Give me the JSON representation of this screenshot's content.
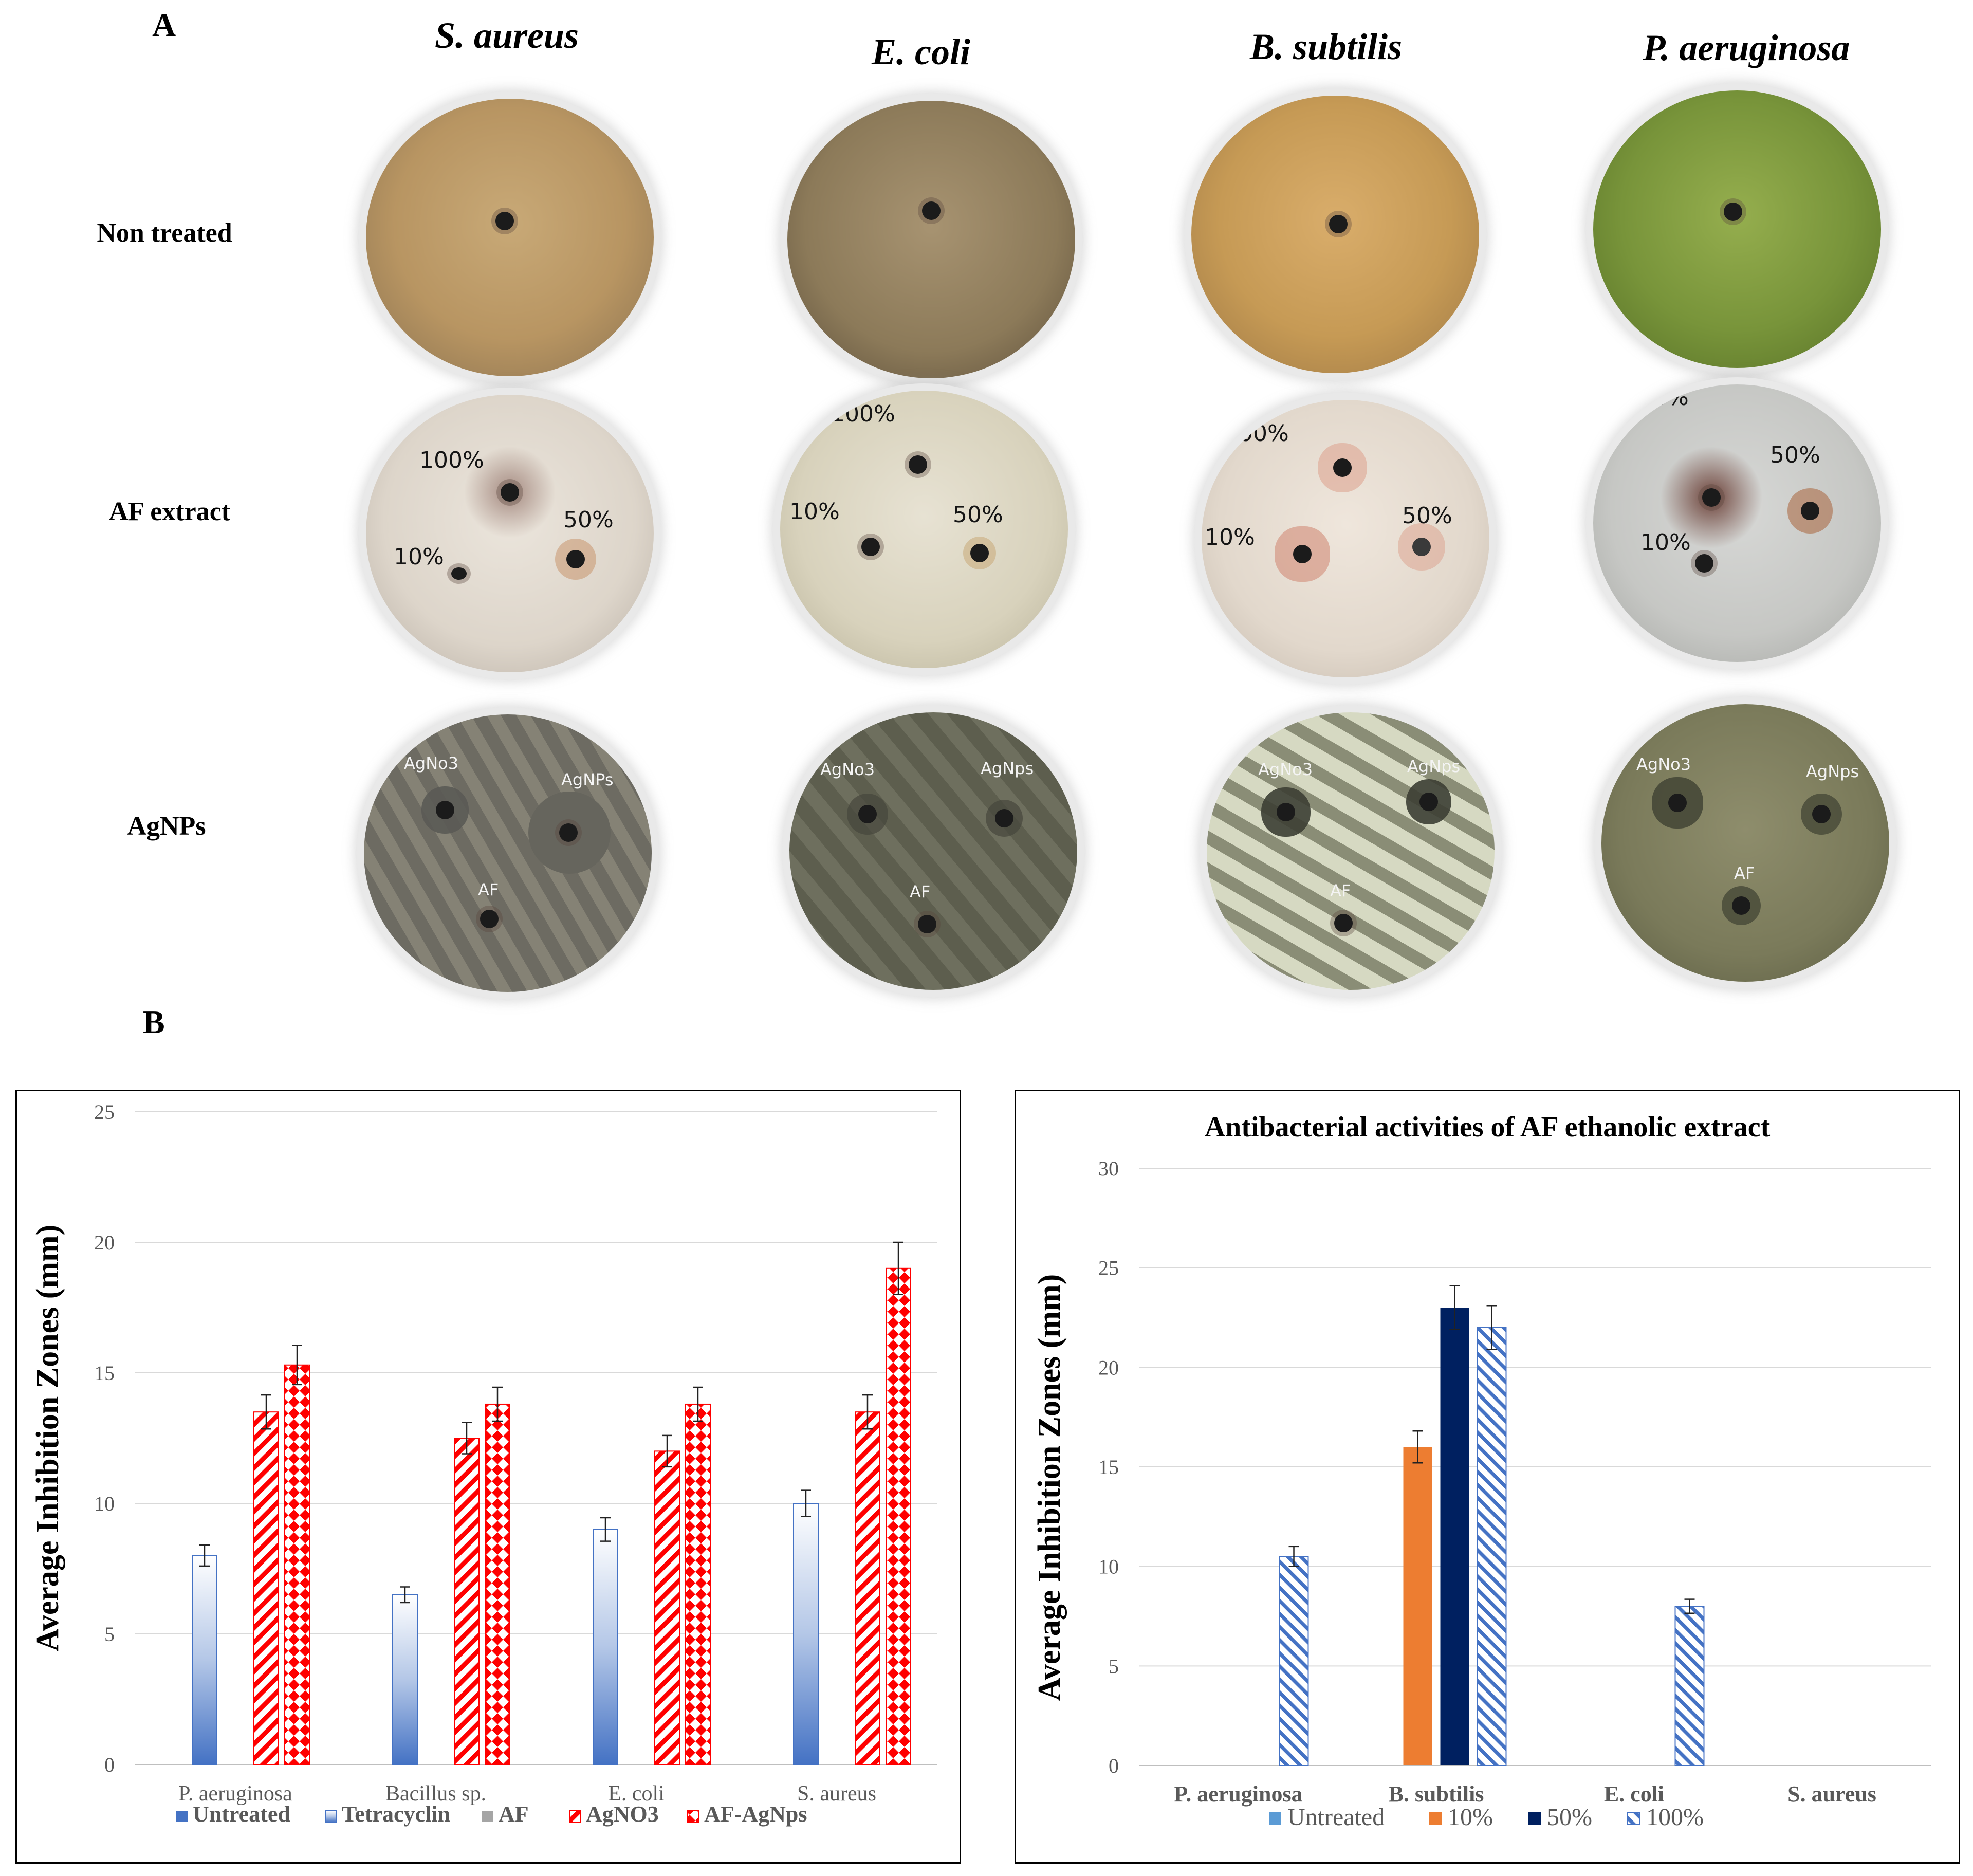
{
  "panel_a": {
    "letter": "A",
    "species": [
      "S. aureus",
      "E. coli",
      "B. subtilis",
      "P. aeruginosa"
    ],
    "rows": [
      "Non treated",
      "AF extract",
      "AgNPs"
    ],
    "af_labels": {
      "high": "100%",
      "mid": "50%",
      "low": "10%"
    },
    "agnp_labels": {
      "s_aureus": [
        "AgNo3",
        "AgNPs",
        "AF"
      ],
      "e_coli": [
        "AgNo3",
        "AgNps",
        "AF"
      ],
      "b_subtilis": [
        "AgNo3",
        "AgNps",
        "AF"
      ],
      "p_aeruginosa": [
        "AgNo3",
        "AgNps",
        "AF"
      ]
    }
  },
  "panel_b": {
    "letter": "B"
  },
  "colors": {
    "blue": "#4472c4",
    "red": "#ff0000",
    "orange": "#ed7d31",
    "navy": "#002060",
    "grid": "#d9d9d9"
  },
  "chart_data": [
    {
      "type": "bar",
      "title": "",
      "xlabel": "",
      "ylabel": "Average Inhibition Zones (mm)",
      "ylim": [
        0,
        25
      ],
      "yticks": [
        "0",
        "5",
        "10",
        "15",
        "20",
        "25"
      ],
      "categories": [
        "P. aeruginosa",
        "Bacillus sp.",
        "E. coli",
        "S. aureus"
      ],
      "legend_position": "bottom",
      "series": [
        {
          "name": "Untreated",
          "values": [
            0,
            0,
            0,
            0
          ],
          "errors": [
            0,
            0,
            0,
            0
          ]
        },
        {
          "name": "Tetracyclin",
          "values": [
            8,
            6.5,
            9,
            10
          ],
          "errors": [
            0.4,
            0.3,
            0.45,
            0.5
          ]
        },
        {
          "name": "AF",
          "values": [
            0,
            0,
            0,
            0
          ],
          "errors": [
            0,
            0,
            0,
            0
          ]
        },
        {
          "name": "AgNO3",
          "values": [
            13.5,
            12.5,
            12,
            13.5
          ],
          "errors": [
            0.65,
            0.6,
            0.6,
            0.65
          ]
        },
        {
          "name": "AF-AgNps",
          "values": [
            15.3,
            13.8,
            13.8,
            19
          ],
          "errors": [
            0.75,
            0.65,
            0.65,
            1.0
          ]
        }
      ]
    },
    {
      "type": "bar",
      "title": "Antibacterial  activities of AF ethanolic extract",
      "xlabel": "",
      "ylabel": "Average Inhibition Zones (mm)",
      "ylim": [
        0,
        30
      ],
      "yticks": [
        "0",
        "5",
        "10",
        "15",
        "20",
        "25",
        "30"
      ],
      "categories": [
        "P. aeruginosa",
        "B. subtilis",
        "E. coli",
        "S. aureus"
      ],
      "legend_position": "bottom",
      "series": [
        {
          "name": "Untreated",
          "values": [
            0,
            0,
            0,
            0
          ],
          "errors": [
            0,
            0,
            0,
            0
          ]
        },
        {
          "name": "10%",
          "values": [
            0,
            16,
            0,
            0
          ],
          "errors": [
            0,
            0.8,
            0,
            0
          ]
        },
        {
          "name": "50%",
          "values": [
            0,
            23,
            0,
            0
          ],
          "errors": [
            0,
            1.1,
            0,
            0
          ]
        },
        {
          "name": "100%",
          "values": [
            10.5,
            22,
            8,
            0
          ],
          "errors": [
            0.5,
            1.1,
            0.35,
            0
          ]
        }
      ]
    }
  ]
}
